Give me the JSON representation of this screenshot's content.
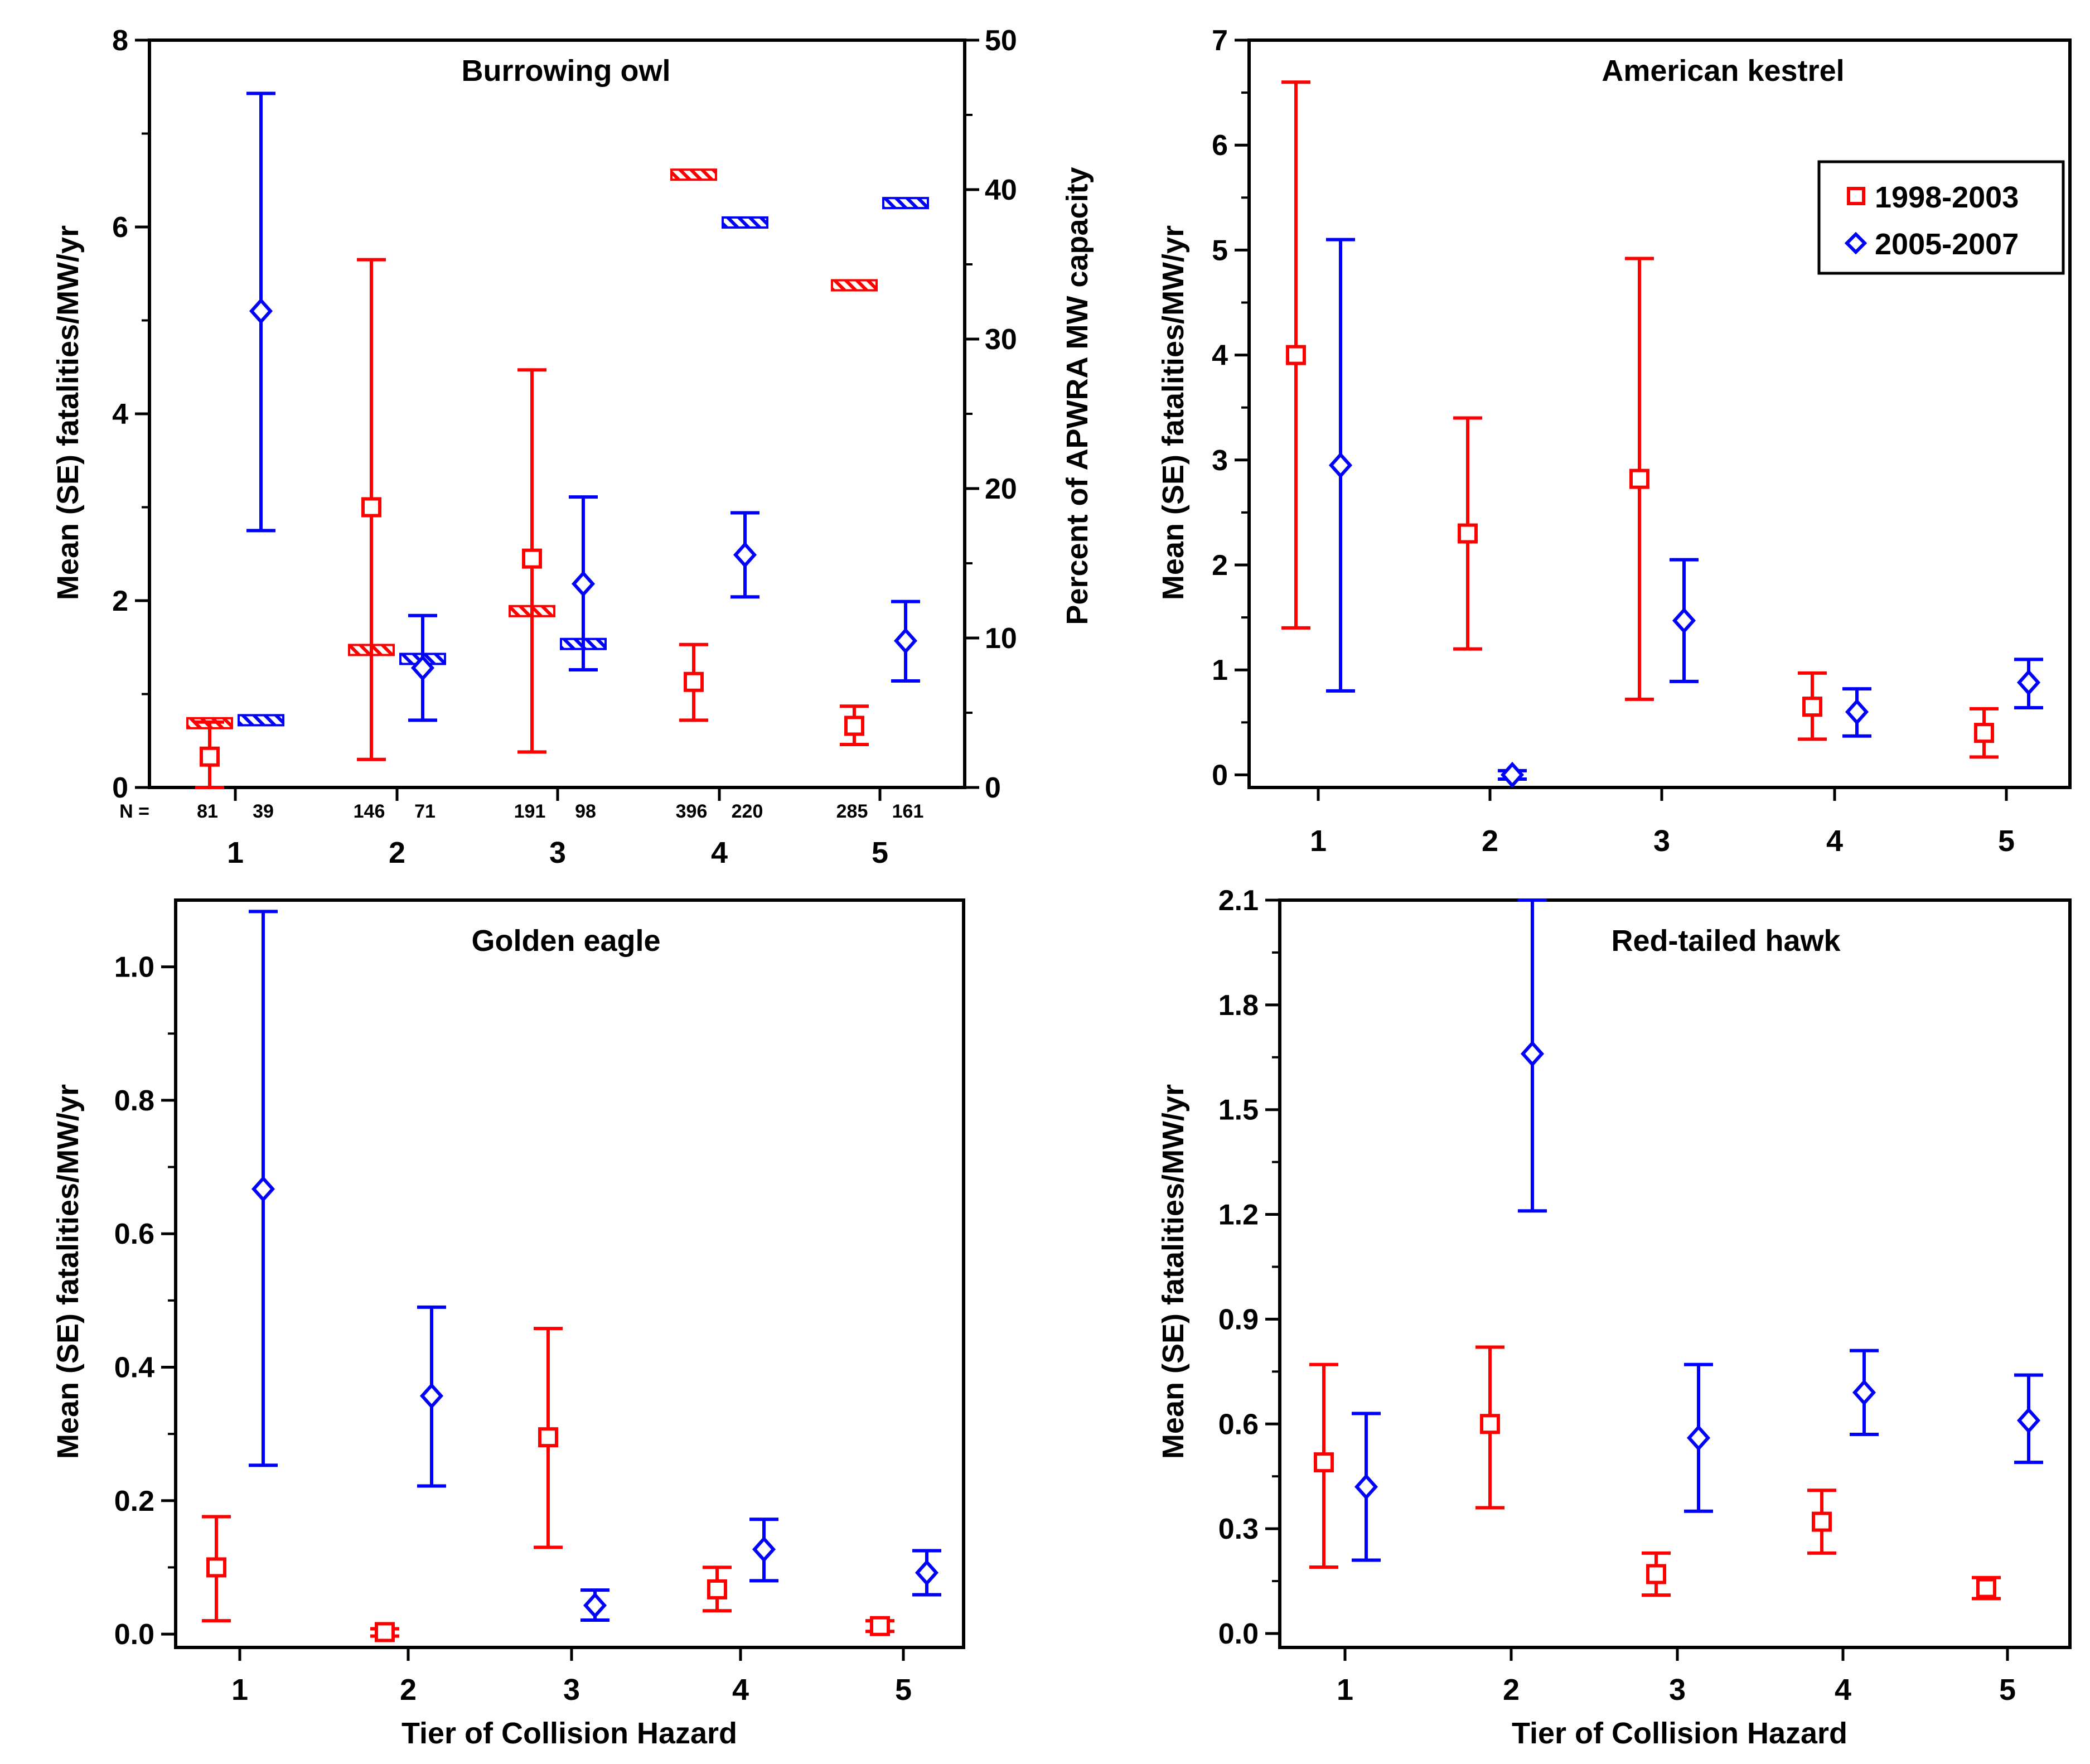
{
  "colors": {
    "red": "#ff0000",
    "blue": "#0000ff",
    "frame": "#000000"
  },
  "legend": {
    "entries": [
      "1998-2003",
      "2005-2007"
    ]
  },
  "chart_data": [
    {
      "type": "scatter",
      "title": "Burrowing owl",
      "xlabel": "",
      "ylabel": "Mean (SE) fatalities/MW/yr",
      "y2label": "Percent of APWRA MW capacity",
      "categories": [
        "1",
        "2",
        "3",
        "4",
        "5"
      ],
      "ylim": [
        0,
        8
      ],
      "yticks": [
        "0",
        "2",
        "4",
        "6",
        "8"
      ],
      "y2lim": [
        0,
        50
      ],
      "y2ticks": [
        "0",
        "10",
        "20",
        "30",
        "40",
        "50"
      ],
      "n_label": "N =",
      "n_values": {
        "red": [
          "81",
          "146",
          "191",
          "396",
          "285"
        ],
        "blue": [
          "39",
          "71",
          "98",
          "220",
          "161"
        ]
      },
      "series": [
        {
          "name": "1998-2003",
          "means": [
            0.33,
            3.0,
            2.45,
            1.13,
            0.66
          ],
          "lower": [
            0.0,
            0.3,
            0.38,
            0.72,
            0.46
          ],
          "upper": [
            0.7,
            5.65,
            4.47,
            1.53,
            0.87
          ],
          "capacity_pct": [
            4.3,
            9.2,
            11.8,
            41.0,
            33.6
          ]
        },
        {
          "name": "2005-2007",
          "means": [
            5.1,
            1.28,
            2.18,
            2.49,
            1.57
          ],
          "lower": [
            2.75,
            0.72,
            1.26,
            2.04,
            1.14
          ],
          "upper": [
            7.43,
            1.84,
            3.11,
            2.94,
            1.99
          ],
          "capacity_pct": [
            4.5,
            8.6,
            9.6,
            37.8,
            39.1
          ]
        }
      ]
    },
    {
      "type": "scatter",
      "title": "American kestrel",
      "xlabel": "",
      "ylabel": "Mean (SE) fatalities/MW/yr",
      "categories": [
        "1",
        "2",
        "3",
        "4",
        "5"
      ],
      "ylim": [
        0,
        7
      ],
      "yticks": [
        "0",
        "1",
        "2",
        "3",
        "4",
        "5",
        "6",
        "7"
      ],
      "series": [
        {
          "name": "1998-2003",
          "means": [
            4.0,
            2.3,
            2.82,
            0.65,
            0.4
          ],
          "lower": [
            1.4,
            1.2,
            0.72,
            0.34,
            0.17
          ],
          "upper": [
            6.6,
            3.4,
            4.92,
            0.97,
            0.63
          ]
        },
        {
          "name": "2005-2007",
          "means": [
            2.95,
            0.0,
            1.47,
            0.6,
            0.88
          ],
          "lower": [
            0.8,
            -0.04,
            0.89,
            0.37,
            0.64
          ],
          "upper": [
            5.1,
            0.04,
            2.05,
            0.82,
            1.1
          ]
        }
      ]
    },
    {
      "type": "scatter",
      "title": "Golden eagle",
      "xlabel": "Tier of Collision Hazard",
      "ylabel": "Mean (SE) fatalities/MW/yr",
      "categories": [
        "1",
        "2",
        "3",
        "4",
        "5"
      ],
      "ylim": [
        -0.02,
        1.1
      ],
      "yticks": [
        "0.0",
        "0.2",
        "0.4",
        "0.6",
        "0.8",
        "1.0"
      ],
      "series": [
        {
          "name": "1998-2003",
          "means": [
            0.1,
            0.003,
            0.295,
            0.067,
            0.012
          ],
          "lower": [
            0.02,
            -0.003,
            0.13,
            0.035,
            0.004
          ],
          "upper": [
            0.176,
            0.008,
            0.458,
            0.1,
            0.02
          ]
        },
        {
          "name": "2005-2007",
          "means": [
            0.667,
            0.357,
            0.043,
            0.127,
            0.092
          ],
          "lower": [
            0.253,
            0.222,
            0.021,
            0.08,
            0.059
          ],
          "upper": [
            1.083,
            0.49,
            0.066,
            0.172,
            0.125
          ]
        }
      ]
    },
    {
      "type": "scatter",
      "title": "Red-tailed hawk",
      "xlabel": "Tier of Collision Hazard",
      "ylabel": "Mean (SE) fatalities/MW/yr",
      "categories": [
        "1",
        "2",
        "3",
        "4",
        "5"
      ],
      "ylim": [
        -0.04,
        2.1
      ],
      "yticks": [
        "0.0",
        "0.3",
        "0.6",
        "0.9",
        "1.2",
        "1.5",
        "1.8",
        "2.1"
      ],
      "series": [
        {
          "name": "1998-2003",
          "means": [
            0.49,
            0.6,
            0.17,
            0.32,
            0.13
          ],
          "lower": [
            0.19,
            0.36,
            0.11,
            0.23,
            0.1
          ],
          "upper": [
            0.77,
            0.82,
            0.23,
            0.41,
            0.16
          ]
        },
        {
          "name": "2005-2007",
          "means": [
            0.42,
            1.66,
            0.56,
            0.69,
            0.61
          ],
          "lower": [
            0.21,
            1.21,
            0.35,
            0.57,
            0.49
          ],
          "upper": [
            0.63,
            2.1,
            0.77,
            0.81,
            0.74
          ]
        }
      ]
    }
  ]
}
